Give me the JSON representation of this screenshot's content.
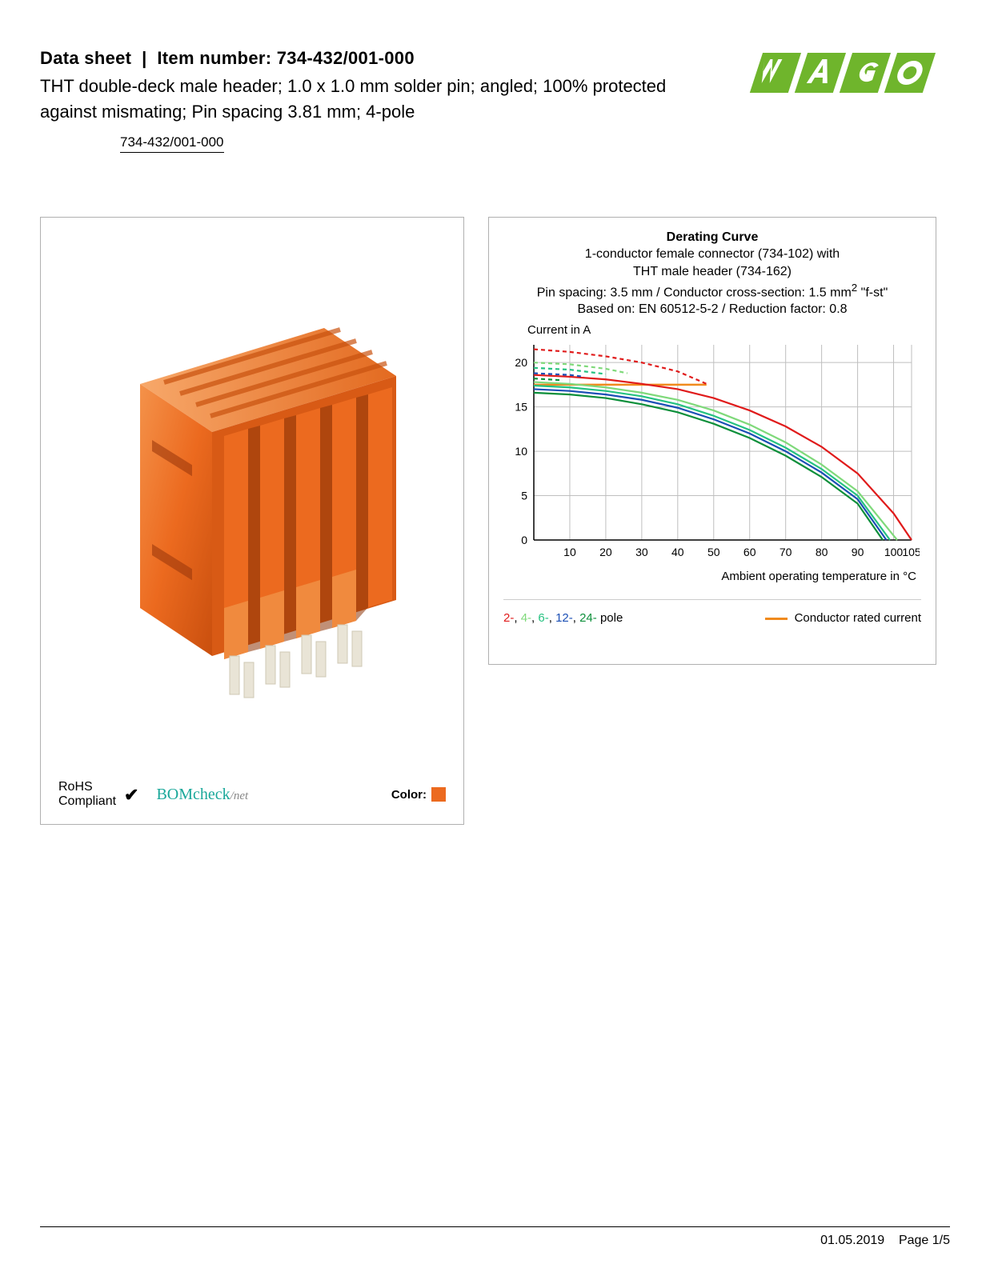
{
  "header": {
    "datasheet_label": "Data sheet",
    "item_label": "Item number:",
    "item_number": "734-432/001-000",
    "description": "THT double-deck male header; 1.0 x 1.0 mm solder pin; angled; 100% protected against mismating; Pin spacing 3.81 mm; 4-pole",
    "link_text": "734-432/001-000",
    "logo_text": "WAGO",
    "logo_color": "#6fb52c"
  },
  "product_panel": {
    "connector_color": "#ec6a1f",
    "pin_color": "#e9e4d6",
    "rohs_line1": "RoHS",
    "rohs_line2": "Compliant",
    "bomcheck_text": "BOMcheck",
    "bomcheck_suffix": "/net",
    "color_label": "Color:",
    "color_swatch": "#ec6a1f"
  },
  "chart": {
    "title": "Derating Curve",
    "sub1": "1-conductor female connector (734-102) with",
    "sub2": "THT male header (734-162)",
    "sub3_a": "Pin spacing: 3.5 mm / Conductor cross-section: 1.5 mm",
    "sub3_b": " \"f-st\"",
    "sub4": "Based on: EN 60512-5-2 / Reduction factor: 0.8",
    "y_label": "Current in A",
    "x_label": "Ambient operating temperature in °C",
    "ylim": [
      0,
      22
    ],
    "xlim": [
      0,
      105
    ],
    "y_ticks": [
      0,
      5,
      10,
      15,
      20
    ],
    "x_ticks": [
      10,
      20,
      30,
      40,
      50,
      60,
      70,
      80,
      90,
      100,
      105
    ],
    "grid_color": "#bfbfbf",
    "axis_color": "#000000",
    "background_color": "#ffffff",
    "series": [
      {
        "label": "2-",
        "color": "#e01b1b",
        "dash": "0",
        "data": [
          [
            0,
            18.6
          ],
          [
            10,
            18.4
          ],
          [
            20,
            18.1
          ],
          [
            30,
            17.6
          ],
          [
            40,
            17.0
          ],
          [
            50,
            16.0
          ],
          [
            60,
            14.6
          ],
          [
            70,
            12.8
          ],
          [
            80,
            10.5
          ],
          [
            90,
            7.5
          ],
          [
            100,
            3.0
          ],
          [
            105,
            0
          ]
        ]
      },
      {
        "label": "4-",
        "color": "#7fd97a",
        "dash": "0",
        "data": [
          [
            0,
            17.8
          ],
          [
            10,
            17.6
          ],
          [
            20,
            17.2
          ],
          [
            30,
            16.6
          ],
          [
            40,
            15.8
          ],
          [
            50,
            14.6
          ],
          [
            60,
            13.0
          ],
          [
            70,
            11.0
          ],
          [
            80,
            8.5
          ],
          [
            90,
            5.5
          ],
          [
            100,
            0.5
          ],
          [
            101,
            0
          ]
        ]
      },
      {
        "label": "6-",
        "color": "#26c281",
        "dash": "0",
        "data": [
          [
            0,
            17.4
          ],
          [
            10,
            17.2
          ],
          [
            20,
            16.8
          ],
          [
            30,
            16.2
          ],
          [
            40,
            15.3
          ],
          [
            50,
            14.0
          ],
          [
            60,
            12.4
          ],
          [
            70,
            10.4
          ],
          [
            80,
            8.0
          ],
          [
            90,
            5.0
          ],
          [
            99,
            0
          ]
        ]
      },
      {
        "label": "12-",
        "color": "#1b4fb5",
        "dash": "0",
        "data": [
          [
            0,
            17.0
          ],
          [
            10,
            16.8
          ],
          [
            20,
            16.4
          ],
          [
            30,
            15.8
          ],
          [
            40,
            14.9
          ],
          [
            50,
            13.6
          ],
          [
            60,
            12.0
          ],
          [
            70,
            10.0
          ],
          [
            80,
            7.6
          ],
          [
            90,
            4.6
          ],
          [
            98,
            0
          ]
        ]
      },
      {
        "label": "24-",
        "color": "#0c8f3a",
        "dash": "0",
        "data": [
          [
            0,
            16.6
          ],
          [
            10,
            16.4
          ],
          [
            20,
            16.0
          ],
          [
            30,
            15.3
          ],
          [
            40,
            14.4
          ],
          [
            50,
            13.1
          ],
          [
            60,
            11.5
          ],
          [
            70,
            9.5
          ],
          [
            80,
            7.1
          ],
          [
            90,
            4.1
          ],
          [
            97,
            0
          ]
        ]
      },
      {
        "label": "2d",
        "color": "#e01b1b",
        "dash": "5 4",
        "data": [
          [
            0,
            21.5
          ],
          [
            10,
            21.2
          ],
          [
            20,
            20.7
          ],
          [
            30,
            20.0
          ],
          [
            40,
            19.0
          ],
          [
            48,
            17.6
          ]
        ]
      },
      {
        "label": "4d",
        "color": "#7fd97a",
        "dash": "5 4",
        "data": [
          [
            0,
            20.0
          ],
          [
            10,
            19.8
          ],
          [
            20,
            19.3
          ],
          [
            26,
            18.8
          ]
        ]
      },
      {
        "label": "6d",
        "color": "#26c281",
        "dash": "5 4",
        "data": [
          [
            0,
            19.4
          ],
          [
            10,
            19.2
          ],
          [
            20,
            18.7
          ]
        ]
      },
      {
        "label": "12d",
        "color": "#1b4fb5",
        "dash": "5 4",
        "data": [
          [
            0,
            18.8
          ],
          [
            10,
            18.6
          ],
          [
            14,
            18.4
          ]
        ]
      },
      {
        "label": "24d",
        "color": "#0c8f3a",
        "dash": "5 4",
        "data": [
          [
            0,
            18.2
          ],
          [
            8,
            18.0
          ]
        ]
      }
    ],
    "rated_current": {
      "color": "#f08a1d",
      "value": 17.5,
      "x_end": 48
    },
    "legend": {
      "poles_suffix": " pole",
      "rated_label": "Conductor rated current"
    }
  },
  "footer": {
    "date": "01.05.2019",
    "page": "Page 1/5"
  }
}
